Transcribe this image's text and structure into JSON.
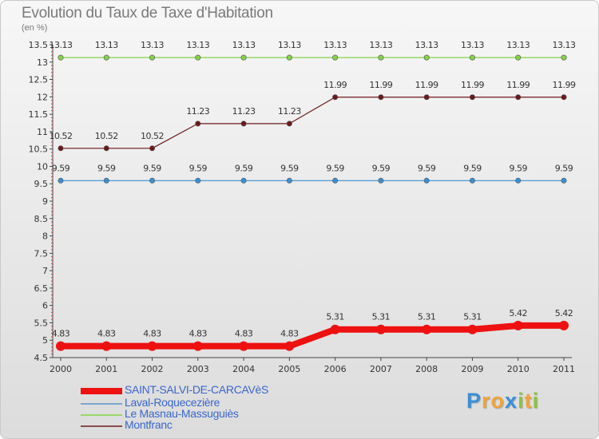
{
  "chart_data": {
    "type": "line",
    "title": "Evolution du Taux de Taxe d'Habitation",
    "subtitle": "(en %)",
    "x": [
      "2000",
      "2001",
      "2002",
      "2003",
      "2004",
      "2005",
      "2006",
      "2007",
      "2008",
      "2009",
      "2010",
      "2011"
    ],
    "ylim": [
      4.5,
      13.5
    ],
    "yticks": [
      "4.5",
      "5",
      "5.5",
      "6",
      "6.5",
      "7",
      "7.5",
      "8",
      "8.5",
      "9",
      "9.5",
      "10",
      "10.5",
      "11",
      "11.5",
      "12",
      "12.5",
      "13",
      "13.5"
    ],
    "ytick_values": [
      4.5,
      5,
      5.5,
      6,
      6.5,
      7,
      7.5,
      8,
      8.5,
      9,
      9.5,
      10,
      10.5,
      11,
      11.5,
      12,
      12.5,
      13,
      13.5
    ],
    "series": [
      {
        "name": "SAINT-SALVI-DE-CARCAVèS",
        "color": "#ee1111",
        "values": [
          4.83,
          4.83,
          4.83,
          4.83,
          4.83,
          4.83,
          5.31,
          5.31,
          5.31,
          5.31,
          5.42,
          5.42
        ],
        "labels": [
          "4.83",
          "4.83",
          "4.83",
          "4.83",
          "4.83",
          "4.83",
          "5.31",
          "5.31",
          "5.31",
          "5.31",
          "5.42",
          "5.42"
        ]
      },
      {
        "name": "Laval-Roquecezière",
        "color": "#3b8fd0",
        "values": [
          9.59,
          9.59,
          9.59,
          9.59,
          9.59,
          9.59,
          9.59,
          9.59,
          9.59,
          9.59,
          9.59,
          9.59
        ],
        "labels": [
          "9.59",
          "9.59",
          "9.59",
          "9.59",
          "9.59",
          "9.59",
          "9.59",
          "9.59",
          "9.59",
          "9.59",
          "9.59",
          "9.59"
        ]
      },
      {
        "name": "Le Masnau-Massuguiès",
        "color": "#84d24a",
        "values": [
          13.13,
          13.13,
          13.13,
          13.13,
          13.13,
          13.13,
          13.13,
          13.13,
          13.13,
          13.13,
          13.13,
          13.13
        ],
        "labels": [
          "13.13",
          "13.13",
          "13.13",
          "13.13",
          "13.13",
          "13.13",
          "13.13",
          "13.13",
          "13.13",
          "13.13",
          "13.13",
          "13.13"
        ]
      },
      {
        "name": "Montfranc",
        "color": "#6b1a1a",
        "values": [
          10.52,
          10.52,
          10.52,
          11.23,
          11.23,
          11.23,
          11.99,
          11.99,
          11.99,
          11.99,
          11.99,
          11.99
        ],
        "labels": [
          "10.52",
          "10.52",
          "10.52",
          "11.23",
          "11.23",
          "11.23",
          "11.99",
          "11.99",
          "11.99",
          "11.99",
          "11.99",
          "11.99"
        ]
      }
    ],
    "legend": [
      "SAINT-SALVI-DE-CARCAVèS",
      "Laval-Roquecezière",
      "Le Masnau-Massuguiès",
      "Montfranc"
    ],
    "legend_colors": [
      "#ee1111",
      "#7aa6cc",
      "#9ad86a",
      "#8a4a4a"
    ],
    "legend_text_color": "#3a66c9"
  },
  "logo": {
    "letters": [
      "P",
      "r",
      "o",
      "x",
      "i",
      "t",
      "i"
    ],
    "colors": [
      "#3a8fd8",
      "#f2a33a",
      "#f2a33a",
      "#3a8fd8",
      "#8ac43f",
      "#f2a33a",
      "#8ac43f"
    ]
  }
}
